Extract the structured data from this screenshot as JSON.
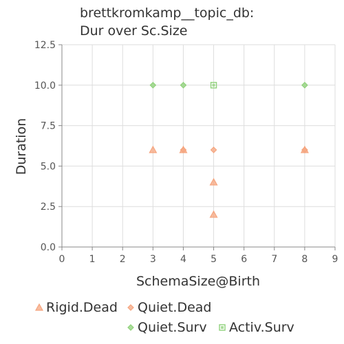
{
  "chart_data": {
    "type": "scatter",
    "title": [
      "brettkromkamp__topic_db:",
      "Dur over Sc.Size"
    ],
    "xlabel": "SchemaSize@Birth",
    "ylabel": "Duration",
    "xlim": [
      0,
      9
    ],
    "ylim": [
      0,
      12.5
    ],
    "xticks": [
      0,
      1,
      2,
      3,
      4,
      5,
      6,
      7,
      8,
      9
    ],
    "yticks": [
      0.0,
      2.5,
      5.0,
      7.5,
      10.0,
      12.5
    ],
    "xtick_labels": [
      "0",
      "1",
      "2",
      "3",
      "4",
      "5",
      "6",
      "7",
      "8",
      "9"
    ],
    "ytick_labels": [
      "0.0",
      "2.5",
      "5.0",
      "7.5",
      "10.0",
      "12.5"
    ],
    "grid": true,
    "legend_position": "bottom",
    "series": [
      {
        "name": "Rigid.Dead",
        "marker": "triangle",
        "color": "#f5a57f",
        "points": [
          {
            "x": 3,
            "y": 6
          },
          {
            "x": 4,
            "y": 6
          },
          {
            "x": 5,
            "y": 4
          },
          {
            "x": 5,
            "y": 2
          },
          {
            "x": 8,
            "y": 6
          }
        ]
      },
      {
        "name": "Quiet.Dead",
        "marker": "diamond",
        "color": "#f5a57f",
        "points": [
          {
            "x": 4,
            "y": 6
          },
          {
            "x": 5,
            "y": 6
          },
          {
            "x": 8,
            "y": 6
          }
        ]
      },
      {
        "name": "Quiet.Surv",
        "marker": "diamond",
        "color": "#8fd17a",
        "points": [
          {
            "x": 3,
            "y": 10
          },
          {
            "x": 4,
            "y": 10
          },
          {
            "x": 8,
            "y": 10
          }
        ]
      },
      {
        "name": "Activ.Surv",
        "marker": "square",
        "color": "#8fd17a",
        "points": [
          {
            "x": 5,
            "y": 10
          }
        ]
      }
    ]
  }
}
